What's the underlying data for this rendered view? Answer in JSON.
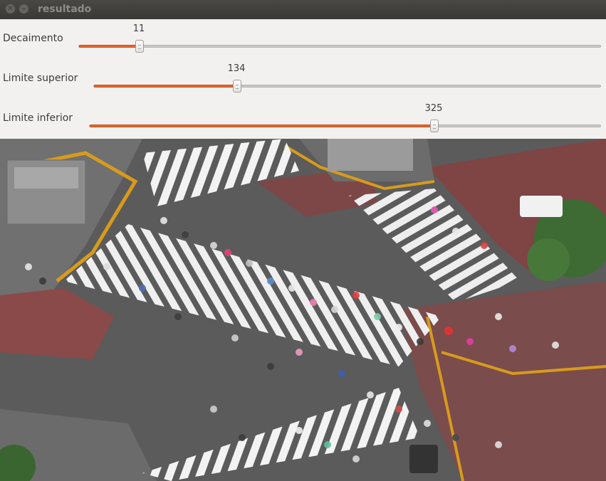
{
  "window": {
    "title": "resultado"
  },
  "sliders": [
    {
      "label": "Decaimento",
      "value": "11",
      "fraction": 0.115
    },
    {
      "label": "Limite superior",
      "value": "134",
      "fraction": 0.28
    },
    {
      "label": "Limite inferior",
      "value": "325",
      "fraction": 0.675
    }
  ],
  "image": {
    "subject": "aerial photo of crowded pedestrian crossing with umbrellas"
  },
  "colors": {
    "accent": "#e9662d",
    "titlebar": "#3b3935",
    "panel": "#f2f1f0"
  }
}
